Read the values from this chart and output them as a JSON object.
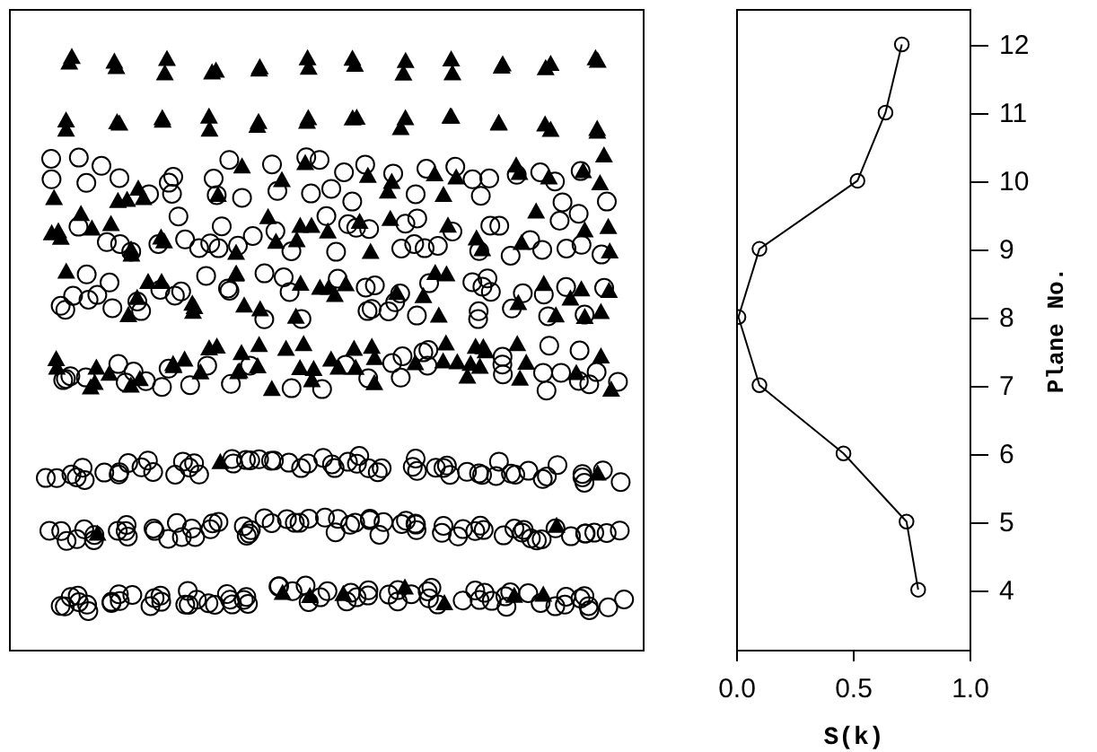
{
  "chart_data": {
    "type": "line",
    "xlabel": "S(k)",
    "ylabel": "Plane No.",
    "orientation": "horizontal",
    "x": [
      12,
      11,
      10,
      9,
      8,
      7,
      6,
      5,
      4
    ],
    "values": [
      0.71,
      0.64,
      0.52,
      0.1,
      0.01,
      0.1,
      0.46,
      0.73,
      0.78
    ],
    "color": "#000000",
    "marker": "circle",
    "line_style": "solid",
    "grid": false,
    "xlim": [
      0,
      1
    ],
    "xticks": [
      {
        "value": 0,
        "label": "0.0"
      },
      {
        "value": 0.5,
        "label": "0.5"
      },
      {
        "value": 1,
        "label": "1.0"
      }
    ],
    "ylim": [
      3.12,
      12.52
    ],
    "yticks": [
      4,
      5,
      6,
      7,
      8,
      9,
      10,
      11,
      12
    ]
  }
}
